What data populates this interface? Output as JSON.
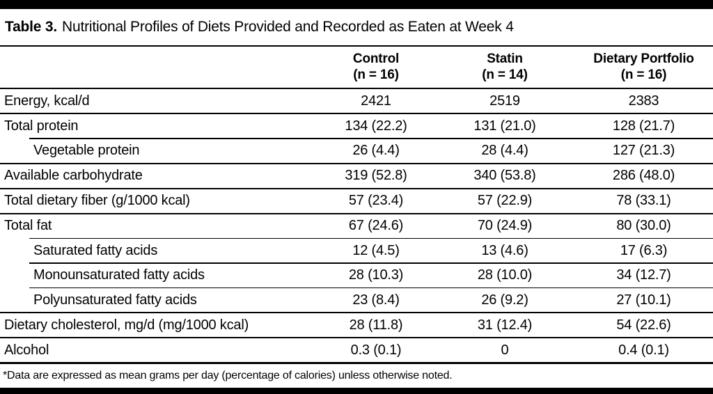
{
  "page": {
    "title_label": "Table 3.",
    "title_text": "Nutritional Profiles of Diets Provided and Recorded as Eaten at Week 4",
    "footnote": "*Data are expressed as mean grams per day (percentage of calories) unless otherwise noted."
  },
  "table": {
    "columns": [
      {
        "name": "Control",
        "n": "(n = 16)"
      },
      {
        "name": "Statin",
        "n": "(n = 14)"
      },
      {
        "name": "Dietary Portfolio",
        "n": "(n = 16)"
      }
    ],
    "rows": [
      {
        "label": "Energy, kcal/d",
        "indent": false,
        "values": [
          "2421",
          "2519",
          "2383"
        ]
      },
      {
        "label": "Total protein",
        "indent": false,
        "values": [
          "134 (22.2)",
          "131 (21.0)",
          "128 (21.7)"
        ]
      },
      {
        "label": "Vegetable protein",
        "indent": true,
        "values": [
          "26 (4.4)",
          "28 (4.4)",
          "127 (21.3)"
        ]
      },
      {
        "label": "Available carbohydrate",
        "indent": false,
        "values": [
          "319 (52.8)",
          "340 (53.8)",
          "286 (48.0)"
        ]
      },
      {
        "label": "Total dietary fiber (g/1000 kcal)",
        "indent": false,
        "values": [
          "57 (23.4)",
          "57 (22.9)",
          "78 (33.1)"
        ]
      },
      {
        "label": "Total fat",
        "indent": false,
        "values": [
          "67 (24.6)",
          "70 (24.9)",
          "80 (30.0)"
        ]
      },
      {
        "label": "Saturated fatty acids",
        "indent": true,
        "values": [
          "12 (4.5)",
          "13 (4.6)",
          "17 (6.3)"
        ]
      },
      {
        "label": "Monounsaturated fatty acids",
        "indent": true,
        "values": [
          "28 (10.3)",
          "28 (10.0)",
          "34 (12.7)"
        ]
      },
      {
        "label": "Polyunsaturated fatty acids",
        "indent": true,
        "values": [
          "23 (8.4)",
          "26 (9.2)",
          "27 (10.1)"
        ]
      },
      {
        "label": "Dietary cholesterol, mg/d (mg/1000 kcal)",
        "indent": false,
        "values": [
          "28 (11.8)",
          "31 (12.4)",
          "54 (22.6)"
        ]
      },
      {
        "label": "Alcohol",
        "indent": false,
        "values": [
          "0.3 (0.1)",
          "0",
          "0.4 (0.1)"
        ]
      }
    ]
  },
  "colors": {
    "background": "#ffffff",
    "text": "#000000",
    "rule": "#000000",
    "bar": "#000000"
  }
}
